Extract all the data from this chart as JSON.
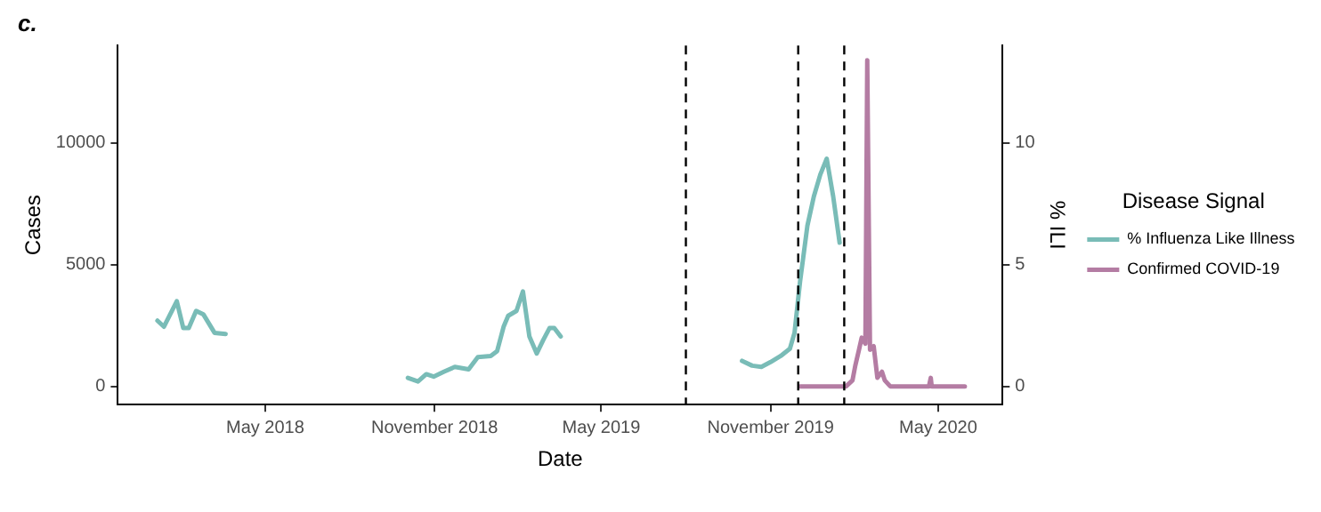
{
  "chart_data": {
    "type": "line",
    "title": "c.",
    "xlabel": "Date",
    "ylabel": "Cases",
    "y2label": "% ILI",
    "legend_title": "Disease Signal",
    "legend": "right",
    "grid": false,
    "marker": "none",
    "line_style": "solid",
    "xlim": [
      "2017-11-22",
      "2020-07-10"
    ],
    "xticks": [
      {
        "value": "2018-05-01",
        "label": "May 2018"
      },
      {
        "value": "2018-11-01",
        "label": "November 2018"
      },
      {
        "value": "2019-05-01",
        "label": "May 2019"
      },
      {
        "value": "2019-11-01",
        "label": "November 2019"
      },
      {
        "value": "2020-05-01",
        "label": "May 2020"
      }
    ],
    "ylim": [
      -750,
      14000
    ],
    "yticks": [
      0,
      5000,
      10000
    ],
    "y2lim": [
      -0.75,
      14
    ],
    "y2ticks": [
      0,
      5,
      10
    ],
    "ref_lines": [
      {
        "axis": "x",
        "value": "2019-08-01",
        "color": "#000000",
        "line_style": "dashed"
      },
      {
        "axis": "x",
        "value": "2019-12-01",
        "color": "#000000",
        "line_style": "dashed"
      },
      {
        "axis": "x",
        "value": "2020-01-20",
        "color": "#000000",
        "line_style": "dashed"
      }
    ],
    "series": [
      {
        "name": "% Influenza Like Illness",
        "color": "#79bcb7",
        "axis": "y2",
        "x": [
          "2018-01-04",
          "2018-01-11",
          "2018-01-25",
          "2018-02-01",
          "2018-02-07",
          "2018-02-15",
          "2018-02-23",
          "2018-03-07",
          "2018-03-19",
          "2018-07-01",
          "2018-10-03",
          "2018-10-14",
          "2018-10-23",
          "2018-10-31",
          "2018-11-11",
          "2018-11-23",
          "2018-12-08",
          "2018-12-18",
          "2019-01-01",
          "2019-01-08",
          "2019-01-15",
          "2019-01-20",
          "2019-01-29",
          "2019-02-05",
          "2019-02-12",
          "2019-02-20",
          "2019-02-27",
          "2019-03-06",
          "2019-03-11",
          "2019-03-18",
          "2019-07-01",
          "2019-10-01",
          "2019-10-12",
          "2019-10-22",
          "2019-11-01",
          "2019-11-12",
          "2019-11-22",
          "2019-11-27",
          "2019-12-03",
          "2019-12-11",
          "2019-12-18",
          "2019-12-25",
          "2020-01-01",
          "2020-01-08",
          "2020-01-15"
        ],
        "values": [
          2.7,
          2.45,
          3.5,
          2.4,
          2.4,
          3.1,
          2.95,
          2.2,
          2.15,
          null,
          0.35,
          0.2,
          0.5,
          0.4,
          0.6,
          0.8,
          0.7,
          1.2,
          1.25,
          1.45,
          2.45,
          2.9,
          3.1,
          3.9,
          2.05,
          1.35,
          1.9,
          2.4,
          2.4,
          2.05,
          null,
          1.05,
          0.85,
          0.8,
          1.0,
          1.25,
          1.55,
          2.2,
          4.3,
          6.6,
          7.8,
          8.7,
          9.35,
          7.8,
          5.9
        ]
      },
      {
        "name": "Confirmed COVID-19",
        "color": "#b47ca3",
        "axis": "y",
        "x": [
          "2019-12-03",
          "2020-01-22",
          "2020-01-29",
          "2020-02-01",
          "2020-02-05",
          "2020-02-08",
          "2020-02-12",
          "2020-02-14",
          "2020-02-17",
          "2020-02-21",
          "2020-02-25",
          "2020-03-01",
          "2020-03-04",
          "2020-03-10",
          "2020-04-21",
          "2020-04-23",
          "2020-04-24",
          "2020-05-30"
        ],
        "values": [
          0,
          0,
          250,
          850,
          1500,
          2000,
          1750,
          13400,
          1500,
          1650,
          350,
          600,
          250,
          0,
          0,
          350,
          0,
          0
        ]
      }
    ]
  }
}
